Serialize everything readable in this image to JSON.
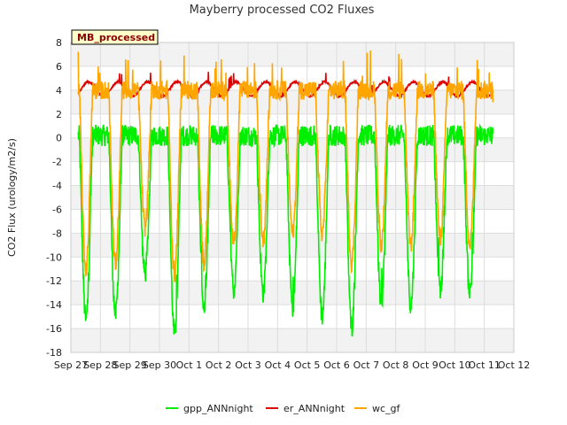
{
  "chart_data": {
    "type": "line",
    "title": "Mayberry processed CO2 Fluxes",
    "ylabel": "CO2 Flux (urology/m2/s)",
    "xlabel": "",
    "badge": "MB_processed",
    "ylim": [
      -18,
      8
    ],
    "yticks": [
      -18,
      -16,
      -14,
      -12,
      -10,
      -8,
      -6,
      -4,
      -2,
      0,
      2,
      4,
      6,
      8
    ],
    "xlim": [
      0,
      15
    ],
    "xticks": [
      {
        "x": 0,
        "label": "Sep 27"
      },
      {
        "x": 1,
        "label": "Sep 28"
      },
      {
        "x": 2,
        "label": "Sep 29"
      },
      {
        "x": 3,
        "label": "Sep 30"
      },
      {
        "x": 4,
        "label": "Oct 1"
      },
      {
        "x": 5,
        "label": "Oct 2"
      },
      {
        "x": 6,
        "label": "Oct 3"
      },
      {
        "x": 7,
        "label": "Oct 4"
      },
      {
        "x": 8,
        "label": "Oct 5"
      },
      {
        "x": 9,
        "label": "Oct 6"
      },
      {
        "x": 10,
        "label": "Oct 7"
      },
      {
        "x": 11,
        "label": "Oct 8"
      },
      {
        "x": 12,
        "label": "Oct 9"
      },
      {
        "x": 13,
        "label": "Oct 10"
      },
      {
        "x": 14,
        "label": "Oct 11"
      },
      {
        "x": 15,
        "label": "Oct 12"
      }
    ],
    "grid": true,
    "legend_position": "bottom",
    "series": [
      {
        "name": "gpp_ANNnight",
        "color": "#00ee00",
        "x_start": 0.25,
        "x_end": 14.3,
        "day_min": [
          -15.3,
          -14.8,
          -11.4,
          -16.5,
          -14.3,
          -12.8,
          -13.0,
          -14.2,
          -14.9,
          -15.9,
          -14.0,
          -14.0,
          -12.8,
          -12.9
        ],
        "night_level": 0.2
      },
      {
        "name": "er_ANNnight",
        "color": "#dd0000",
        "x_start": 0.25,
        "x_end": 14.3,
        "mean": 4.1,
        "amplitude": 0.6
      },
      {
        "name": "wc_gf",
        "color": "#ffa500",
        "x_start": 0.25,
        "x_end": 14.3,
        "day_min": [
          -11.0,
          -10.5,
          -7.5,
          -11.5,
          -10.5,
          -8.8,
          -8.5,
          -8.0,
          -8.0,
          -10.5,
          -9.0,
          -9.0,
          -8.5,
          -9.0
        ],
        "night_level": 4.0
      }
    ]
  }
}
